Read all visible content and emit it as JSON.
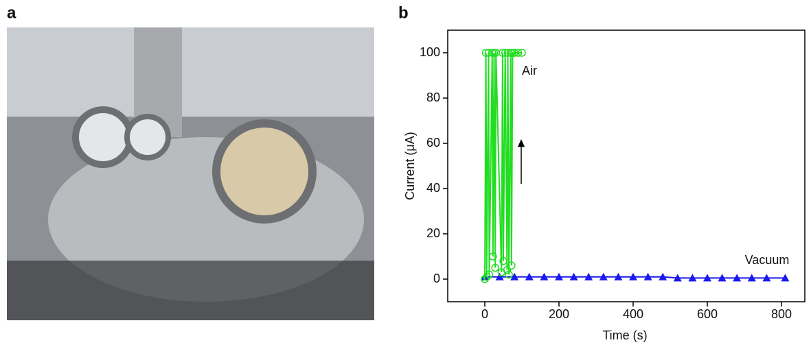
{
  "figure": {
    "panel_labels": [
      "a",
      "b"
    ]
  },
  "chart_data": {
    "type": "line",
    "xlabel": "Time (s)",
    "ylabel": "Current (μA)",
    "xlim": [
      -100,
      863
    ],
    "ylim": [
      -10,
      110
    ],
    "xticks": [
      0,
      200,
      400,
      600,
      800
    ],
    "yticks": [
      0,
      20,
      40,
      60,
      80,
      100
    ],
    "annotations": [
      "Air",
      "Vacuum"
    ],
    "series": [
      {
        "name": "Air",
        "color": "#22dd22",
        "marker": "circle",
        "x": [
          0,
          3,
          5,
          10,
          12,
          20,
          22,
          25,
          28,
          30,
          45,
          48,
          50,
          55,
          60,
          62,
          65,
          70,
          72,
          75,
          80,
          90,
          100
        ],
        "values": [
          0,
          100,
          1,
          100,
          2,
          100,
          10,
          100,
          5,
          100,
          3,
          100,
          8,
          100,
          4,
          100,
          2,
          100,
          6,
          100,
          100,
          100,
          100
        ]
      },
      {
        "name": "Vacuum",
        "color": "#1a1aee",
        "marker": "triangle",
        "x": [
          0,
          40,
          80,
          120,
          160,
          200,
          240,
          280,
          320,
          360,
          400,
          440,
          480,
          520,
          560,
          600,
          640,
          680,
          720,
          760,
          810
        ],
        "values": [
          1,
          1,
          1,
          1,
          1,
          1,
          1,
          1,
          1,
          1,
          1,
          1,
          1,
          0.5,
          0.5,
          0.5,
          0.5,
          0.5,
          0.5,
          0.5,
          0.5
        ]
      }
    ]
  }
}
